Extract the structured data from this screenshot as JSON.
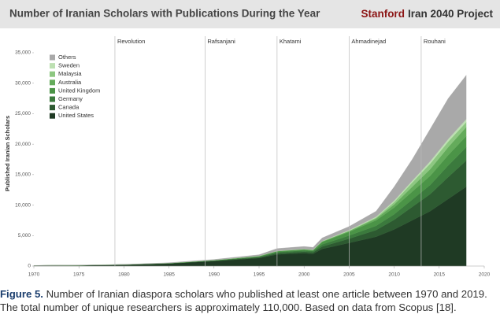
{
  "chart_data": {
    "type": "stacked-area",
    "title": "Number of Iranian Scholars with Publications During the Year",
    "brand": "Stanford",
    "project": "Iran 2040 Project",
    "y_label": "Published Iranian Scholars",
    "x": [
      1970,
      1975,
      1980,
      1985,
      1990,
      1995,
      1997,
      2000,
      2001,
      2002,
      2005,
      2008,
      2010,
      2012,
      2014,
      2016,
      2018
    ],
    "series": [
      {
        "name": "United States",
        "color": "#1f3a24",
        "values": [
          80,
          120,
          200,
          400,
          800,
          1300,
          1900,
          2100,
          2000,
          2800,
          3800,
          4800,
          6000,
          7500,
          9000,
          11000,
          13000
        ]
      },
      {
        "name": "Canada",
        "color": "#2d5a31",
        "values": [
          5,
          10,
          15,
          30,
          60,
          120,
          200,
          250,
          250,
          400,
          700,
          1100,
          1600,
          2200,
          2800,
          3600,
          4300
        ]
      },
      {
        "name": "Germany",
        "color": "#3b7a3d",
        "values": [
          5,
          5,
          10,
          25,
          50,
          100,
          180,
          200,
          200,
          350,
          500,
          700,
          900,
          1200,
          1500,
          1900,
          2200
        ]
      },
      {
        "name": "United Kingdom",
        "color": "#4b9447",
        "values": [
          5,
          10,
          15,
          25,
          50,
          100,
          150,
          180,
          150,
          400,
          600,
          900,
          1100,
          1300,
          1500,
          1700,
          1800
        ]
      },
      {
        "name": "Australia",
        "color": "#64ab5b",
        "values": [
          0,
          0,
          5,
          5,
          10,
          20,
          30,
          40,
          40,
          80,
          150,
          300,
          500,
          800,
          1100,
          1300,
          1500
        ]
      },
      {
        "name": "Malaysia",
        "color": "#8dc781",
        "values": [
          0,
          0,
          0,
          0,
          0,
          5,
          5,
          10,
          10,
          20,
          50,
          150,
          400,
          700,
          900,
          900,
          800
        ]
      },
      {
        "name": "Sweden",
        "color": "#bde0b2",
        "values": [
          0,
          0,
          5,
          5,
          10,
          15,
          20,
          30,
          30,
          60,
          100,
          150,
          250,
          300,
          400,
          450,
          500
        ]
      },
      {
        "name": "Others",
        "color": "#a9a9a9",
        "values": [
          10,
          20,
          30,
          60,
          100,
          200,
          400,
          400,
          400,
          500,
          600,
          900,
          2250,
          3500,
          5300,
          6650,
          7200
        ]
      }
    ],
    "events": [
      {
        "year": 1979,
        "label": "Revolution"
      },
      {
        "year": 1989,
        "label": "Rafsanjani"
      },
      {
        "year": 1997,
        "label": "Khatami"
      },
      {
        "year": 2005,
        "label": "Ahmadinejad"
      },
      {
        "year": 2013,
        "label": "Rouhani"
      }
    ],
    "xlim": [
      1970,
      2020
    ],
    "xticks": [
      1970,
      1975,
      1980,
      1985,
      1990,
      1995,
      2000,
      2005,
      2010,
      2015,
      2020
    ],
    "ylim": [
      0,
      35000
    ],
    "yticks": [
      0,
      {
        "value": 5000,
        "label": "5,000"
      },
      {
        "value": 10000,
        "label": "10,000"
      },
      {
        "value": 15000,
        "label": "15,000"
      },
      {
        "value": 20000,
        "label": "20,000"
      },
      {
        "value": 25000,
        "label": "25,000"
      },
      {
        "value": 30000,
        "label": "30,000"
      },
      {
        "value": 35000,
        "label": "35,000"
      }
    ],
    "legend": "upper-left"
  },
  "caption": {
    "label": "Figure 5.",
    "text": "Number of Iranian diaspora scholars who published at least one article between 1970 and 2019. The total number of unique researchers is approximately 110,000. Based on data from Scopus [18]."
  }
}
